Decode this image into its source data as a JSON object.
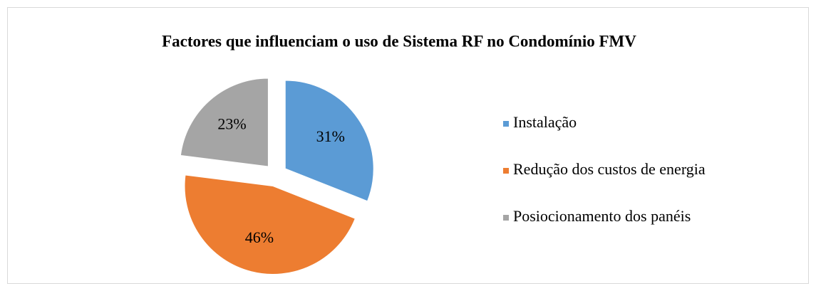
{
  "chart_data": {
    "type": "pie",
    "title": "Factores que influenciam o uso de Sistema RF no Condomínio FMV",
    "categories": [
      "Instalação",
      "Redução dos custos de energia",
      "Posiocionamento dos panéis"
    ],
    "values": [
      31,
      46,
      23
    ],
    "value_labels": [
      "31%",
      "46%",
      "23%"
    ],
    "colors": [
      "#5b9bd5",
      "#ed7d31",
      "#a5a5a5"
    ],
    "legend": "right"
  }
}
